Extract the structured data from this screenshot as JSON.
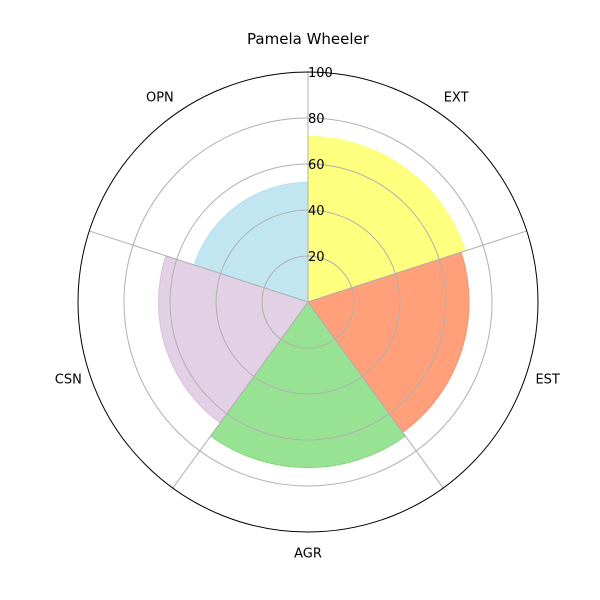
{
  "chart_data": {
    "type": "polar-bar",
    "title": "Pamela Wheeler",
    "categories": [
      "EXT",
      "EST",
      "AGR",
      "CSN",
      "OPN"
    ],
    "values": [
      72,
      70,
      72,
      65,
      52
    ],
    "colors": [
      "#ffff7f",
      "#ffa07a",
      "#98e393",
      "#e2d0e4",
      "#c2e5f2"
    ],
    "edge_colors": [
      "#ffff7f",
      "#ff8f63",
      "#7fd87a",
      "#d9c3db",
      "#b4dff0"
    ],
    "rlim": [
      0,
      100
    ],
    "r_ticks": [
      20,
      40,
      60,
      80,
      100
    ],
    "grid": true
  }
}
